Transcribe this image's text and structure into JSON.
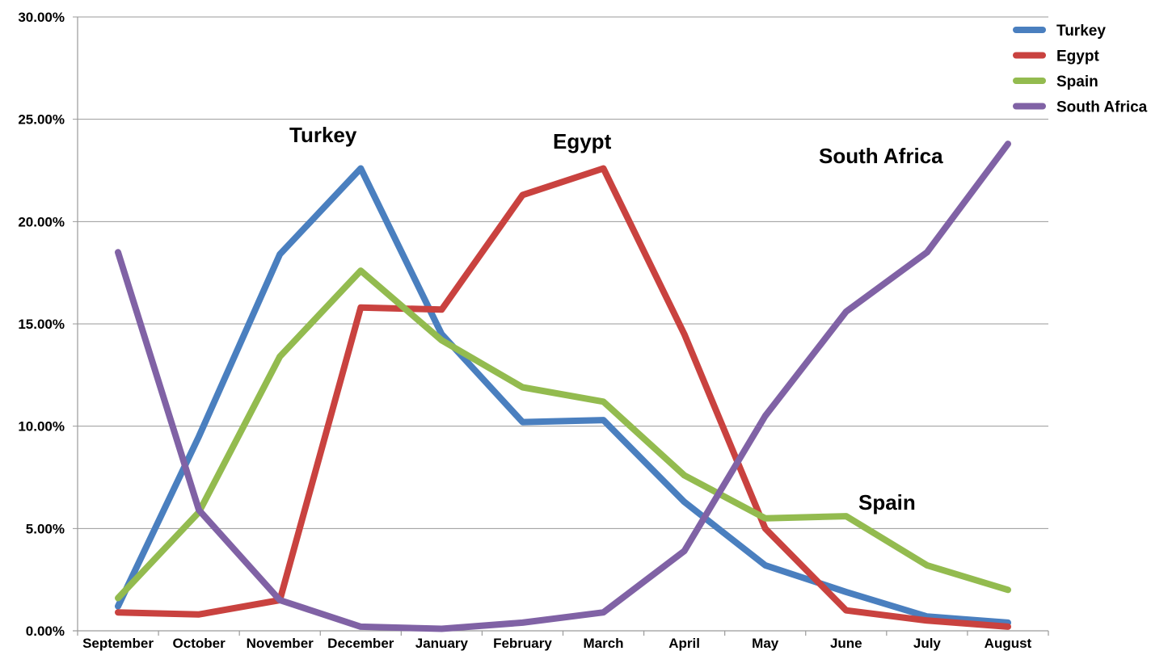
{
  "chart_data": {
    "type": "line",
    "categories": [
      "September",
      "October",
      "November",
      "December",
      "January",
      "February",
      "March",
      "April",
      "May",
      "June",
      "July",
      "August"
    ],
    "y_ticks": [
      "0.00%",
      "5.00%",
      "10.00%",
      "15.00%",
      "20.00%",
      "25.00%",
      "30.00%"
    ],
    "ylim": [
      0,
      30
    ],
    "grid": true,
    "legend_position": "top-right",
    "series": [
      {
        "name": "Turkey",
        "color": "#4a7fbf",
        "values": [
          1.2,
          9.5,
          18.4,
          22.6,
          14.5,
          10.2,
          10.3,
          6.3,
          3.2,
          1.9,
          0.7,
          0.4
        ]
      },
      {
        "name": "Egypt",
        "color": "#c9423f",
        "values": [
          0.9,
          0.8,
          1.5,
          15.8,
          15.7,
          21.3,
          22.6,
          14.5,
          5.0,
          1.0,
          0.5,
          0.2
        ]
      },
      {
        "name": "Spain",
        "color": "#93bb4f",
        "values": [
          1.6,
          5.8,
          13.4,
          17.6,
          14.2,
          11.9,
          11.2,
          7.6,
          5.5,
          5.6,
          3.2,
          2.0
        ]
      },
      {
        "name": "South Africa",
        "color": "#8062a5",
        "values": [
          18.5,
          5.9,
          1.5,
          0.2,
          0.1,
          0.4,
          0.9,
          3.9,
          10.5,
          15.6,
          18.5,
          23.8
        ]
      }
    ],
    "annotations": [
      "Turkey",
      "Egypt",
      "South Africa",
      "Spain"
    ]
  }
}
